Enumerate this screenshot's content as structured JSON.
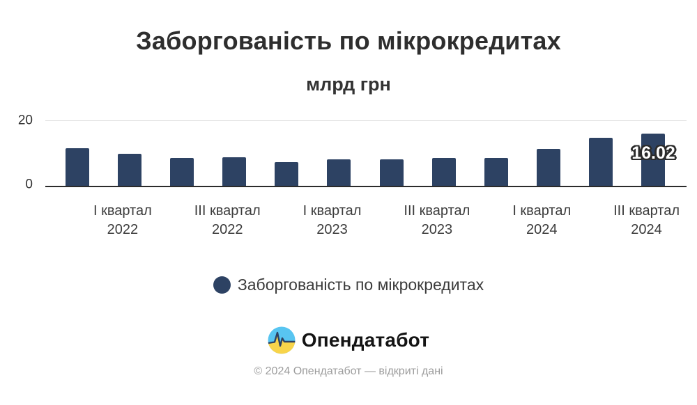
{
  "chart_data": {
    "type": "bar",
    "title": "Заборгованість по мікрокредитах",
    "subtitle": "млрд грн",
    "ylabel": "млрд грн",
    "ylim": [
      0,
      20
    ],
    "grid": "single top line at 20",
    "y_axis_ticks": [
      {
        "value": 20,
        "label": "20"
      },
      {
        "value": 0,
        "label": "0"
      }
    ],
    "bar_color": "#2d4263",
    "grid_color": "#dcdcdc",
    "axis_color": "#2b2b2b",
    "series_name": "Заборгованість по мікрокредитах",
    "bars": [
      {
        "value": 11.6,
        "tick_line1": "",
        "tick_line2": ""
      },
      {
        "value": 9.9,
        "tick_line1": "I квартал",
        "tick_line2": "2022"
      },
      {
        "value": 8.6,
        "tick_line1": "",
        "tick_line2": ""
      },
      {
        "value": 8.8,
        "tick_line1": "III квартал",
        "tick_line2": "2022"
      },
      {
        "value": 7.4,
        "tick_line1": "",
        "tick_line2": ""
      },
      {
        "value": 8.3,
        "tick_line1": "I квартал",
        "tick_line2": "2023"
      },
      {
        "value": 8.2,
        "tick_line1": "",
        "tick_line2": ""
      },
      {
        "value": 8.6,
        "tick_line1": "III квартал",
        "tick_line2": "2023"
      },
      {
        "value": 8.6,
        "tick_line1": "",
        "tick_line2": ""
      },
      {
        "value": 11.4,
        "tick_line1": "I квартал",
        "tick_line2": "2024"
      },
      {
        "value": 14.7,
        "tick_line1": "",
        "tick_line2": ""
      },
      {
        "value": 16.02,
        "tick_line1": "III квартал",
        "tick_line2": "2024",
        "data_label": "16.02"
      }
    ]
  },
  "legend": {
    "marker_color": "#2d4263",
    "label": "Заборгованість по мікрокредитах"
  },
  "branding": {
    "logo_icon": "opendatabot-pulse-circle",
    "logo_text": "Опендатабот",
    "logo_colors": {
      "top": "#58c5f1",
      "bottom": "#f8d44a",
      "pulse": "#2d4263"
    }
  },
  "footer": {
    "copyright": "© 2024 Опендатабот — відкриті дані"
  }
}
